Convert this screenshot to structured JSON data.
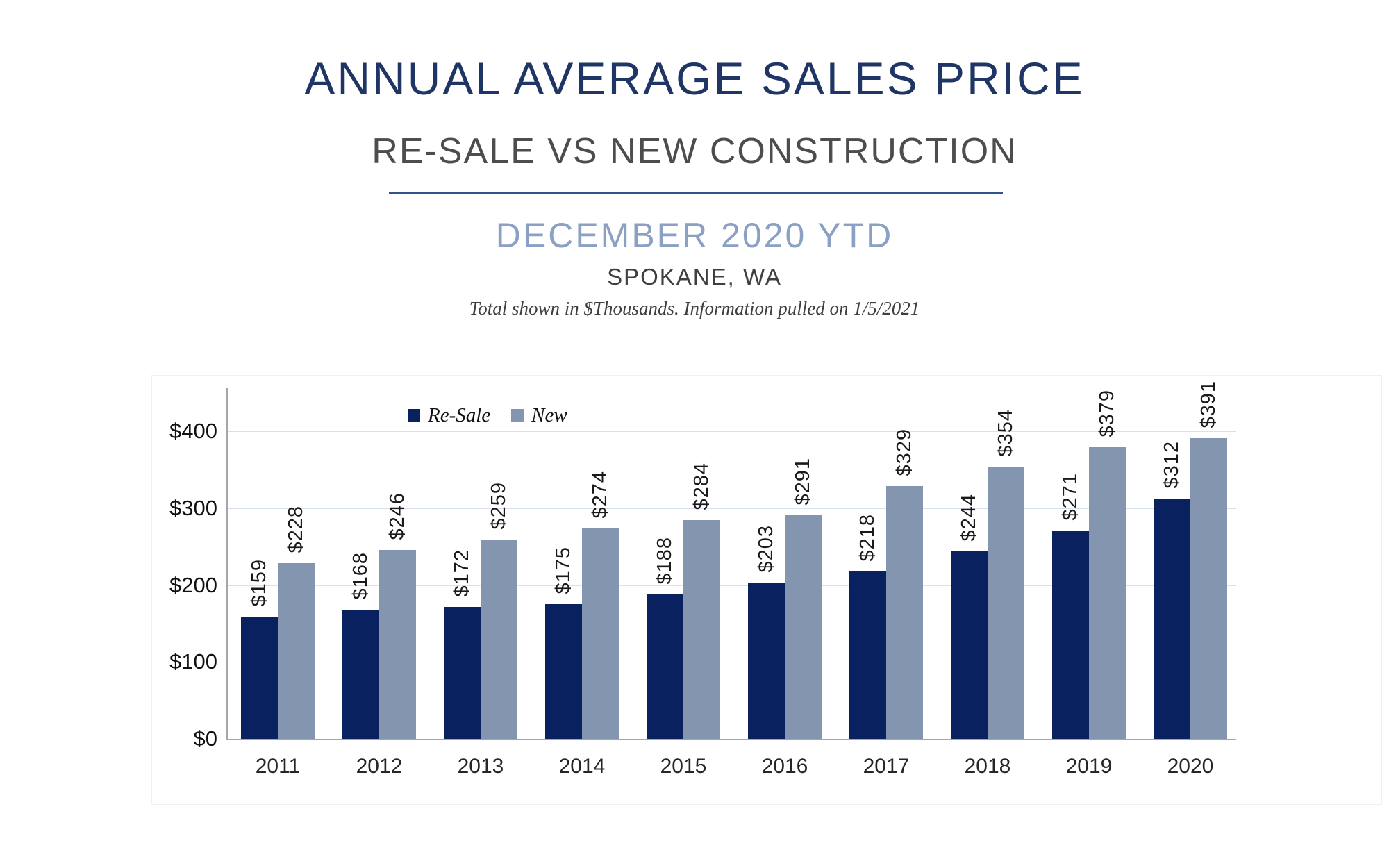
{
  "header": {
    "title": "ANNUAL AVERAGE SALES PRICE",
    "subtitle": "RE-SALE VS NEW CONSTRUCTION",
    "period": "DECEMBER 2020 YTD",
    "location": "SPOKANE, WA",
    "note": "Total shown in $Thousands. Information pulled on 1/5/2021"
  },
  "theme": {
    "title_color": "#1e3565",
    "subtitle_color": "#4d4d4d",
    "divider_color": "#33518a",
    "period_color": "#8ba0c2",
    "location_color": "#3f3f3f",
    "grid_color": "#d9e0ee",
    "axis_color": "#a6a6a6"
  },
  "chart_data": {
    "type": "bar",
    "title": "Annual Average Sales Price — Re-Sale vs New Construction, December 2020 YTD, Spokane WA ($Thousands)",
    "categories": [
      "2011",
      "2012",
      "2013",
      "2014",
      "2015",
      "2016",
      "2017",
      "2018",
      "2019",
      "2020"
    ],
    "series": [
      {
        "name": "Re-Sale",
        "color": "#0a2160",
        "values": [
          159,
          168,
          172,
          175,
          188,
          203,
          218,
          244,
          271,
          312
        ]
      },
      {
        "name": "New",
        "color": "#8496af",
        "values": [
          228,
          246,
          259,
          274,
          284,
          291,
          329,
          354,
          379,
          391
        ]
      }
    ],
    "value_label_prefix": "$",
    "value_labels_rotated": true,
    "y_ticks": [
      {
        "value": 0,
        "label": "$0"
      },
      {
        "value": 100,
        "label": "$100"
      },
      {
        "value": 200,
        "label": "$200"
      },
      {
        "value": 300,
        "label": "$300"
      },
      {
        "value": 400,
        "label": "$400"
      }
    ],
    "ylim": [
      0,
      456
    ],
    "grid": true,
    "legend_position": "top-inside-left"
  }
}
